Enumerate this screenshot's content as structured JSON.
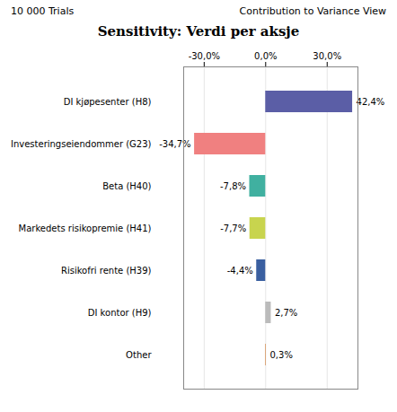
{
  "chart_data": {
    "type": "bar",
    "orientation": "horizontal",
    "title": "Sensitivity: Verdi per aksje",
    "annotations": [
      "10 000 Trials",
      "Contribution to Variance View"
    ],
    "categories": [
      "DI kjøpesenter (H8)",
      "Investeringseiendommer (G23)",
      "Beta (H40)",
      "Markedets risikopremie (H41)",
      "Risikofri rente (H39)",
      "DI kontor (H9)",
      "Other"
    ],
    "values": [
      42.4,
      -34.7,
      -7.8,
      -7.7,
      -4.4,
      2.7,
      0.3
    ],
    "value_labels": [
      "42,4%",
      "-34,7%",
      "-7,8%",
      "-7,7%",
      "-4,4%",
      "2,7%",
      "0,3%"
    ],
    "colors": [
      "#5B5EA6",
      "#F08080",
      "#40B0A0",
      "#C8D44E",
      "#3A5FA0",
      "#BBBBBB",
      "#D4884A"
    ],
    "xlim": [
      -40,
      45
    ],
    "xticks": [
      {
        "value": -30.0,
        "label": "-30,0%"
      },
      {
        "value": 0.0,
        "label": "0,0%"
      },
      {
        "value": 30.0,
        "label": "30,0%"
      }
    ],
    "grid": true,
    "data_labels": true
  }
}
